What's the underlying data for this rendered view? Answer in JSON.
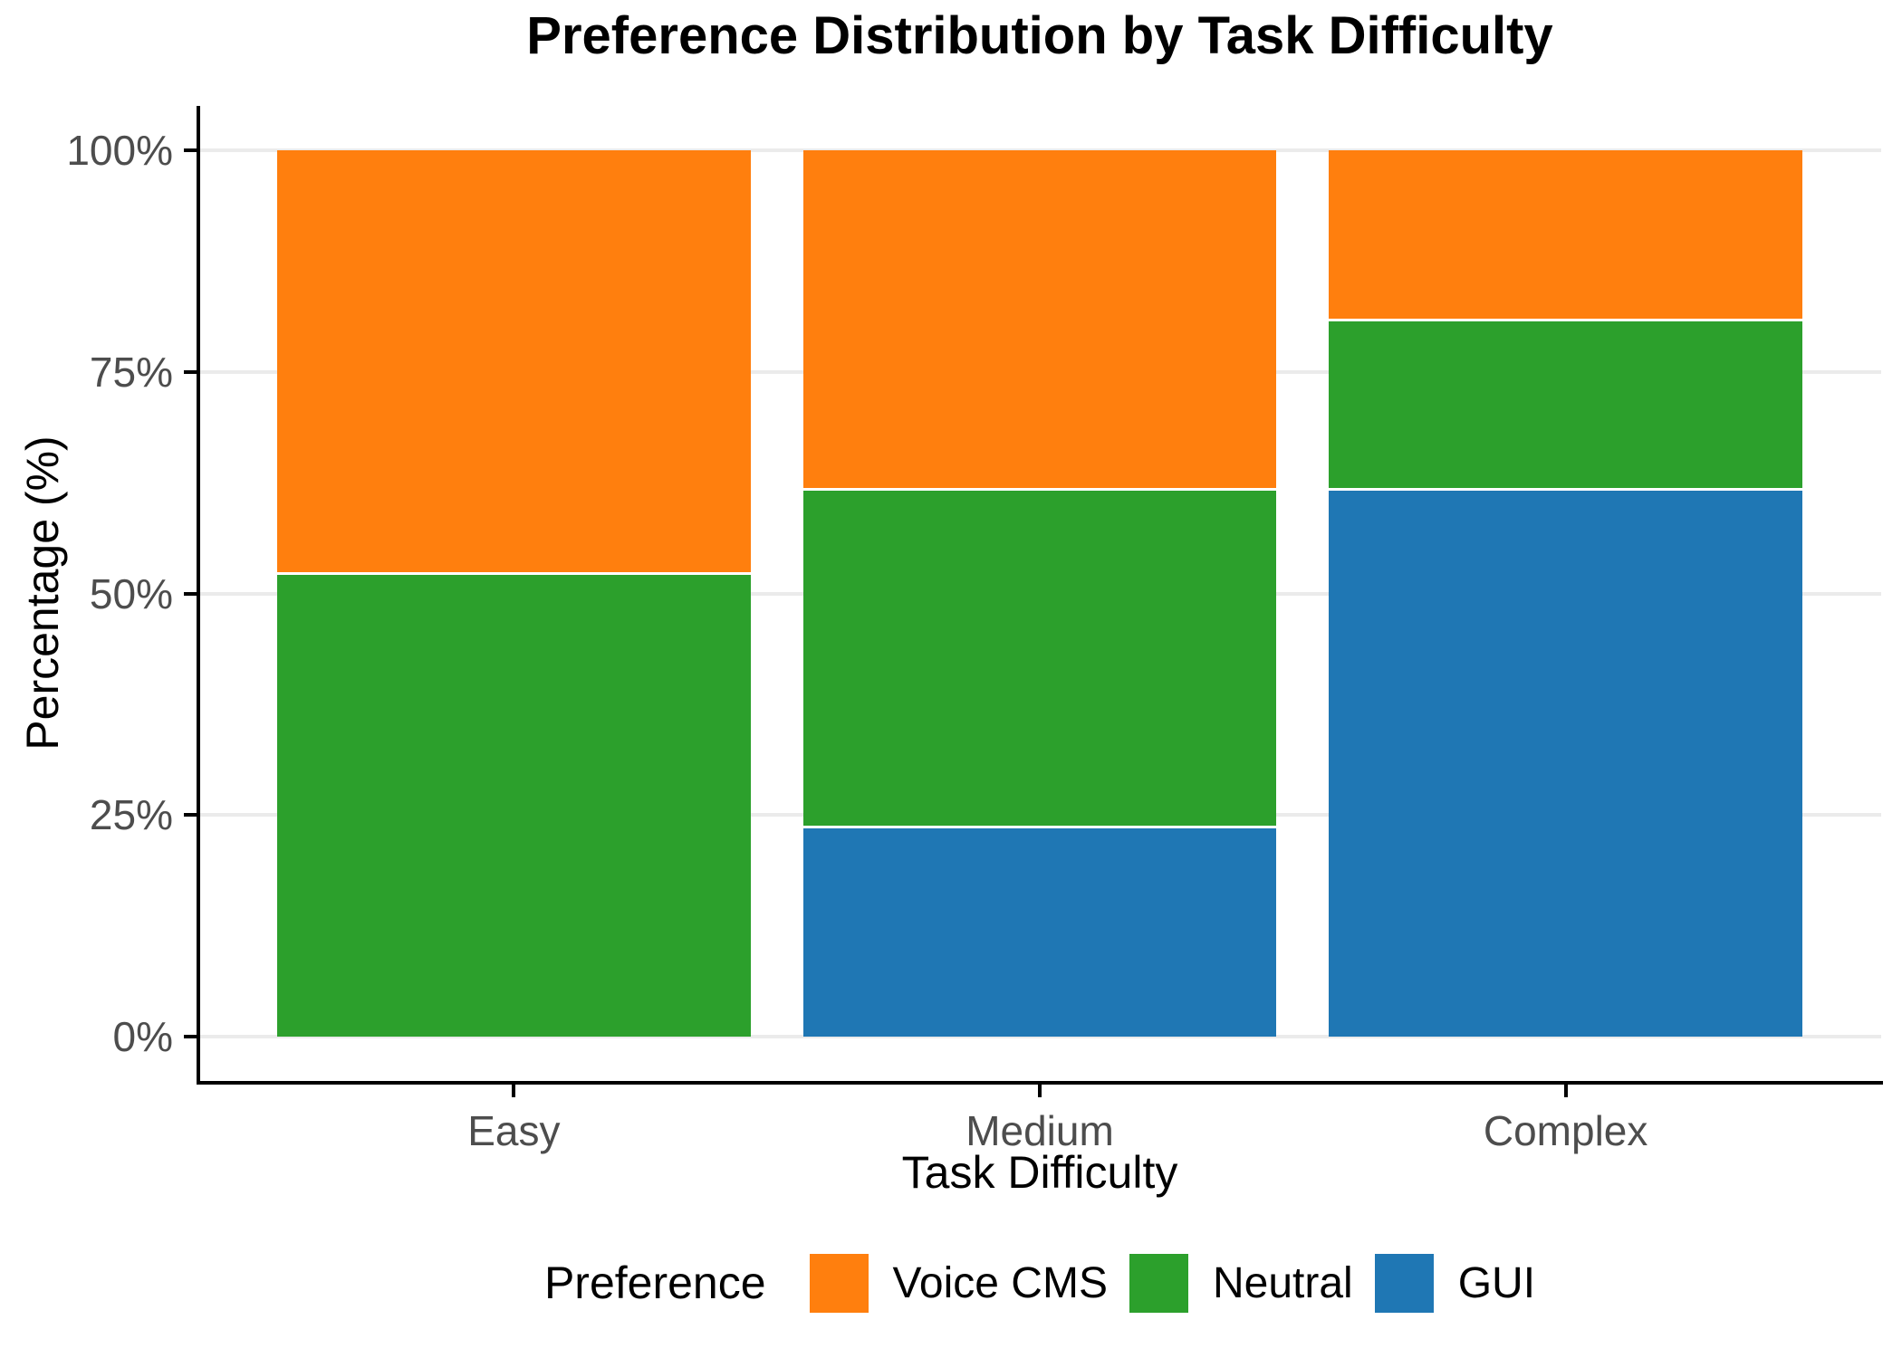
{
  "title": "Preference Distribution by Task Difficulty",
  "chart_data": {
    "type": "bar",
    "subtype": "stacked-percentage",
    "title": "Preference Distribution by Task Difficulty",
    "xlabel": "Task Difficulty",
    "ylabel": "Percentage (%)",
    "categories": [
      "Easy",
      "Medium",
      "Complex"
    ],
    "series": [
      {
        "name": "Voice CMS",
        "color": "#FF7F0E",
        "values": [
          47.6,
          38.1,
          19.0
        ]
      },
      {
        "name": "Neutral",
        "color": "#2CA02C",
        "values": [
          52.4,
          38.1,
          19.1
        ]
      },
      {
        "name": "GUI",
        "color": "#1F77B4",
        "values": [
          0.0,
          23.8,
          61.9
        ]
      }
    ],
    "stack_order_bottom_to_top": [
      "GUI",
      "Neutral",
      "Voice CMS"
    ],
    "ylim": [
      0,
      100
    ],
    "y_ticks": [
      {
        "value": 0,
        "label": "0%"
      },
      {
        "value": 25,
        "label": "25%"
      },
      {
        "value": 50,
        "label": "50%"
      },
      {
        "value": 75,
        "label": "75%"
      },
      {
        "value": 100,
        "label": "100%"
      }
    ],
    "grid": "horizontal",
    "legend": {
      "title": "Preference",
      "position": "bottom",
      "entries": [
        {
          "label": "Voice CMS",
          "color": "#FF7F0E"
        },
        {
          "label": "Neutral",
          "color": "#2CA02C"
        },
        {
          "label": "GUI",
          "color": "#1F77B4"
        }
      ]
    },
    "colors": {
      "background": "#FFFFFF",
      "gridline": "#EBEBEB",
      "axis_line": "#000000",
      "axis_text": "#4D4D4D"
    }
  }
}
